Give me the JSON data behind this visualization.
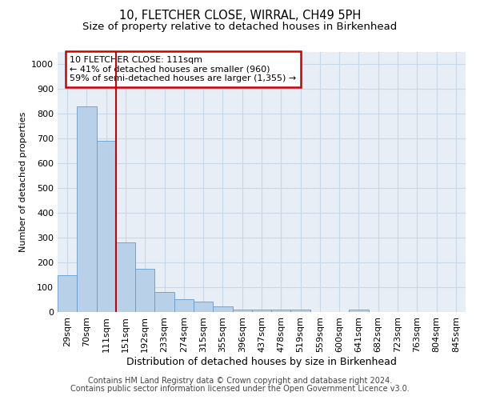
{
  "title": "10, FLETCHER CLOSE, WIRRAL, CH49 5PH",
  "subtitle": "Size of property relative to detached houses in Birkenhead",
  "xlabel": "Distribution of detached houses by size in Birkenhead",
  "ylabel": "Number of detached properties",
  "footnote1": "Contains HM Land Registry data © Crown copyright and database right 2024.",
  "footnote2": "Contains public sector information licensed under the Open Government Licence v3.0.",
  "bar_labels": [
    "29sqm",
    "70sqm",
    "111sqm",
    "151sqm",
    "192sqm",
    "233sqm",
    "274sqm",
    "315sqm",
    "355sqm",
    "396sqm",
    "437sqm",
    "478sqm",
    "519sqm",
    "559sqm",
    "600sqm",
    "641sqm",
    "682sqm",
    "723sqm",
    "763sqm",
    "804sqm",
    "845sqm"
  ],
  "bar_values": [
    150,
    830,
    690,
    280,
    173,
    80,
    52,
    43,
    22,
    10,
    10,
    10,
    10,
    0,
    0,
    10,
    0,
    0,
    0,
    0,
    0
  ],
  "bar_color": "#b8d0e8",
  "bar_edge_color": "#6699cc",
  "highlight_index": 2,
  "highlight_line_color": "#cc0000",
  "annotation_text": "10 FLETCHER CLOSE: 111sqm\n← 41% of detached houses are smaller (960)\n59% of semi-detached houses are larger (1,355) →",
  "annotation_box_color": "#cc0000",
  "ylim": [
    0,
    1050
  ],
  "yticks": [
    0,
    100,
    200,
    300,
    400,
    500,
    600,
    700,
    800,
    900,
    1000
  ],
  "grid_color": "#c8d8e8",
  "background_color": "#e8eef5",
  "title_fontsize": 10.5,
  "subtitle_fontsize": 9.5,
  "footnote_fontsize": 7,
  "xlabel_fontsize": 9,
  "ylabel_fontsize": 8,
  "tick_fontsize": 8,
  "ann_fontsize": 8
}
